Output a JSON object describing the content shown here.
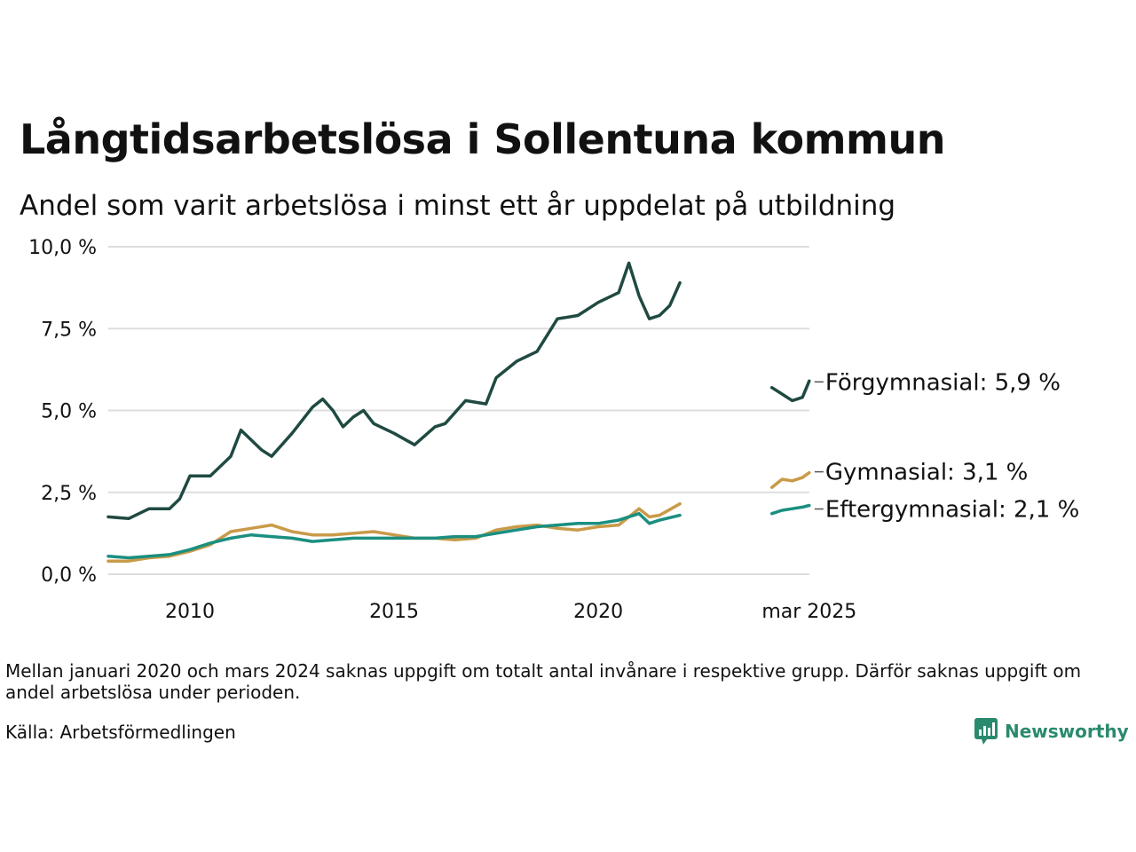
{
  "header": {
    "title": "Långtidsarbetslösa i Sollentuna kommun",
    "subtitle": "Andel som varit arbetslösa i minst ett år uppdelat på utbildning"
  },
  "footer": {
    "note": "Mellan januari 2020 och mars 2024 saknas uppgift om totalt antal invånare i respektive grupp. Därför saknas uppgift om andel arbetslösa under perioden.",
    "source": "Källa: Arbetsförmedlingen",
    "brand": "Newsworthy"
  },
  "colors": {
    "forgymnasial": "#1f4a42",
    "gymnasial": "#c99a48",
    "eftergymnasial": "#1a8f80",
    "grid": "#dddddd",
    "brand": "#2a8a6e"
  },
  "chart_data": {
    "type": "line",
    "title": "Långtidsarbetslösa i Sollentuna kommun",
    "subtitle": "Andel som varit arbetslösa i minst ett år uppdelat på utbildning",
    "xlabel": "",
    "ylabel": "",
    "x_ticks": [
      "2010",
      "2015",
      "2020",
      "mar 2025"
    ],
    "y_ticks": [
      "0,0 %",
      "2,5 %",
      "5,0 %",
      "7,5 %",
      "10,0 %"
    ],
    "ylim": [
      0,
      10
    ],
    "grid": true,
    "legend": "end-of-line labels",
    "series": [
      {
        "name": "Förgymnasial",
        "end_label": "Förgymnasial: 5,9 %",
        "color": "#1f4a42",
        "segments": [
          [
            [
              "2008-01",
              1.75
            ],
            [
              "2008-07",
              1.7
            ],
            [
              "2009-01",
              2.0
            ],
            [
              "2009-07",
              2.0
            ],
            [
              "2009-10",
              2.3
            ],
            [
              "2010-01",
              3.0
            ],
            [
              "2010-07",
              3.0
            ],
            [
              "2011-01",
              3.6
            ],
            [
              "2011-04",
              4.4
            ],
            [
              "2011-10",
              3.8
            ],
            [
              "2012-01",
              3.6
            ],
            [
              "2012-07",
              4.3
            ],
            [
              "2013-01",
              5.1
            ],
            [
              "2013-04",
              5.35
            ],
            [
              "2013-07",
              5.0
            ],
            [
              "2013-10",
              4.5
            ],
            [
              "2014-01",
              4.8
            ],
            [
              "2014-04",
              5.0
            ],
            [
              "2014-07",
              4.6
            ],
            [
              "2015-01",
              4.3
            ],
            [
              "2015-07",
              3.95
            ],
            [
              "2016-01",
              4.5
            ],
            [
              "2016-04",
              4.6
            ],
            [
              "2016-10",
              5.3
            ],
            [
              "2017-04",
              5.2
            ],
            [
              "2017-07",
              6.0
            ],
            [
              "2018-01",
              6.5
            ],
            [
              "2018-07",
              6.8
            ],
            [
              "2019-01",
              7.8
            ],
            [
              "2019-07",
              7.9
            ],
            [
              "2020-01",
              8.3
            ],
            [
              "2020-07",
              8.6
            ],
            [
              "2020-10",
              9.5
            ],
            [
              "2021-01",
              8.5
            ],
            [
              "2021-04",
              7.8
            ],
            [
              "2021-07",
              7.9
            ],
            [
              "2021-10",
              8.2
            ],
            [
              "2022-01",
              8.9
            ]
          ],
          [
            [
              "2024-04",
              5.7
            ],
            [
              "2024-07",
              5.5
            ],
            [
              "2024-10",
              5.3
            ],
            [
              "2025-01",
              5.4
            ],
            [
              "2025-03",
              5.9
            ]
          ]
        ]
      },
      {
        "name": "Gymnasial",
        "end_label": "Gymnasial: 3,1 %",
        "color": "#c99a48",
        "segments": [
          [
            [
              "2008-01",
              0.4
            ],
            [
              "2008-07",
              0.4
            ],
            [
              "2009-01",
              0.5
            ],
            [
              "2009-07",
              0.55
            ],
            [
              "2010-01",
              0.7
            ],
            [
              "2010-07",
              0.9
            ],
            [
              "2011-01",
              1.3
            ],
            [
              "2011-07",
              1.4
            ],
            [
              "2012-01",
              1.5
            ],
            [
              "2012-04",
              1.4
            ],
            [
              "2012-07",
              1.3
            ],
            [
              "2013-01",
              1.2
            ],
            [
              "2013-07",
              1.2
            ],
            [
              "2014-01",
              1.25
            ],
            [
              "2014-07",
              1.3
            ],
            [
              "2015-01",
              1.2
            ],
            [
              "2015-07",
              1.1
            ],
            [
              "2016-01",
              1.1
            ],
            [
              "2016-07",
              1.05
            ],
            [
              "2017-01",
              1.1
            ],
            [
              "2017-07",
              1.35
            ],
            [
              "2018-01",
              1.45
            ],
            [
              "2018-07",
              1.5
            ],
            [
              "2019-01",
              1.4
            ],
            [
              "2019-07",
              1.35
            ],
            [
              "2020-01",
              1.45
            ],
            [
              "2020-07",
              1.5
            ],
            [
              "2021-01",
              2.0
            ],
            [
              "2021-04",
              1.75
            ],
            [
              "2021-07",
              1.8
            ],
            [
              "2022-01",
              2.15
            ]
          ],
          [
            [
              "2024-04",
              2.65
            ],
            [
              "2024-07",
              2.9
            ],
            [
              "2024-10",
              2.85
            ],
            [
              "2025-01",
              2.95
            ],
            [
              "2025-03",
              3.1
            ]
          ]
        ]
      },
      {
        "name": "Eftergymnasial",
        "end_label": "Eftergymnasial: 2,1 %",
        "color": "#1a8f80",
        "segments": [
          [
            [
              "2008-01",
              0.55
            ],
            [
              "2008-07",
              0.5
            ],
            [
              "2009-01",
              0.55
            ],
            [
              "2009-07",
              0.6
            ],
            [
              "2010-01",
              0.75
            ],
            [
              "2010-07",
              0.95
            ],
            [
              "2011-01",
              1.1
            ],
            [
              "2011-07",
              1.2
            ],
            [
              "2012-01",
              1.15
            ],
            [
              "2012-07",
              1.1
            ],
            [
              "2013-01",
              1.0
            ],
            [
              "2013-07",
              1.05
            ],
            [
              "2014-01",
              1.1
            ],
            [
              "2014-07",
              1.1
            ],
            [
              "2015-01",
              1.1
            ],
            [
              "2015-07",
              1.1
            ],
            [
              "2016-01",
              1.1
            ],
            [
              "2016-07",
              1.15
            ],
            [
              "2017-01",
              1.15
            ],
            [
              "2017-07",
              1.25
            ],
            [
              "2018-01",
              1.35
            ],
            [
              "2018-07",
              1.45
            ],
            [
              "2019-01",
              1.5
            ],
            [
              "2019-07",
              1.55
            ],
            [
              "2020-01",
              1.55
            ],
            [
              "2020-07",
              1.65
            ],
            [
              "2021-01",
              1.85
            ],
            [
              "2021-04",
              1.55
            ],
            [
              "2021-07",
              1.65
            ],
            [
              "2022-01",
              1.8
            ]
          ],
          [
            [
              "2024-04",
              1.85
            ],
            [
              "2024-07",
              1.95
            ],
            [
              "2024-10",
              2.0
            ],
            [
              "2025-01",
              2.05
            ],
            [
              "2025-03",
              2.1
            ]
          ]
        ]
      }
    ]
  }
}
